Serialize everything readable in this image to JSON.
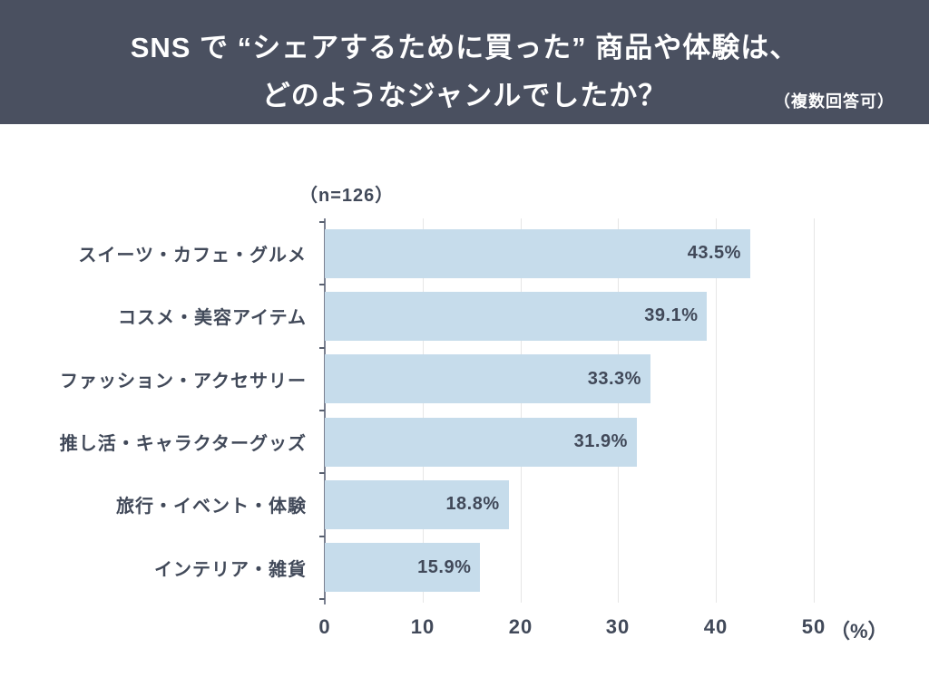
{
  "header": {
    "title_line1": "SNS で “シェアするために買った” 商品や体験は、",
    "title_line2": "どのようなジャンルでしたか？",
    "note": "（複数回答可）"
  },
  "chart": {
    "sample_size_label": "（n=126）"
  },
  "colors": {
    "header_bg": "#4A5060",
    "title_text": "#FFFFFF",
    "bar_fill": "#C6DCEB",
    "chart_text": "#414959",
    "gridline": "#E6E6E6",
    "axis_line": "#7A8090"
  },
  "chart_data": {
    "type": "bar",
    "orientation": "horizontal",
    "title": "SNS で “シェアするために買った” 商品や体験は、どのようなジャンルでしたか？",
    "subtitle": "（複数回答可）",
    "sample_size": 126,
    "categories": [
      "スイーツ・カフェ・グルメ",
      "コスメ・美容アイテム",
      "ファッション・アクセサリー",
      "推し活・キャラクターグッズ",
      "旅行・イベント・体験",
      "インテリア・雑貨"
    ],
    "values": [
      43.5,
      39.1,
      33.3,
      31.9,
      18.8,
      15.9
    ],
    "value_labels": [
      "43.5%",
      "39.1%",
      "33.3%",
      "31.9%",
      "18.8%",
      "15.9%"
    ],
    "xlim": [
      0,
      50
    ],
    "x_ticks": [
      0,
      10,
      20,
      30,
      40,
      50
    ],
    "x_tick_labels": [
      "0",
      "10",
      "20",
      "30",
      "40",
      "50"
    ],
    "x_unit_label": "（%）",
    "grid": true,
    "legend": false,
    "value_label_position": "inside-end"
  }
}
